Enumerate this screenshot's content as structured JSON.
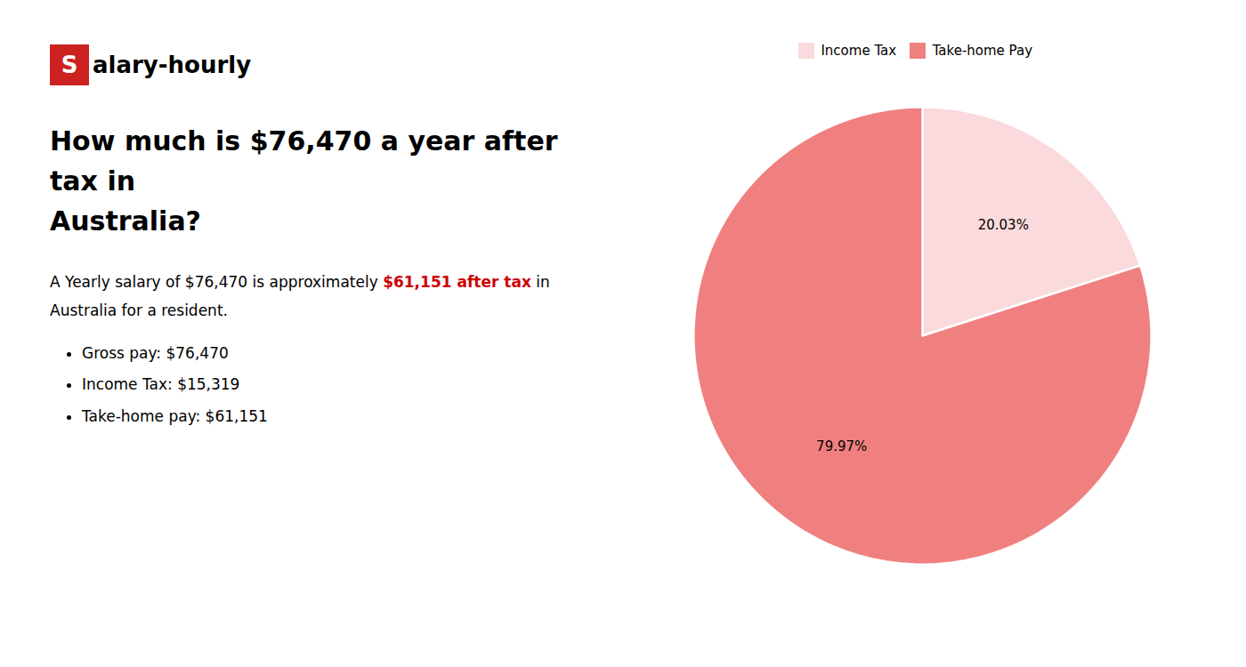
{
  "chart_data": {
    "type": "pie",
    "title": "How much is $76,470 a year after tax in\nAustralia?",
    "categories": [
      "Income Tax",
      "Take-home Pay"
    ],
    "values": [
      20.03,
      79.97
    ],
    "value_labels": [
      "20.03%",
      "79.97%"
    ],
    "colors": [
      "#fadadd",
      "#f08080"
    ],
    "data_labels": true,
    "legend": "top",
    "annotations": [
      [
        {
          "text": "S",
          "color": "#cc2222"
        },
        {
          "text": "alary-hourly"
        }
      ],
      [
        {
          "text": "A Yearly salary of $76,470 is approximately "
        },
        {
          "text": "$61,151 after tax",
          "color": "#cc0000"
        },
        {
          "text": " in"
        }
      ],
      [
        {
          "text": "Australia for a resident."
        }
      ],
      [
        {
          "text": "Gross pay: $76,470"
        }
      ],
      [
        {
          "text": "Income Tax: $15,319"
        }
      ],
      [
        {
          "text": "Take-home pay: $61,151"
        }
      ]
    ]
  }
}
